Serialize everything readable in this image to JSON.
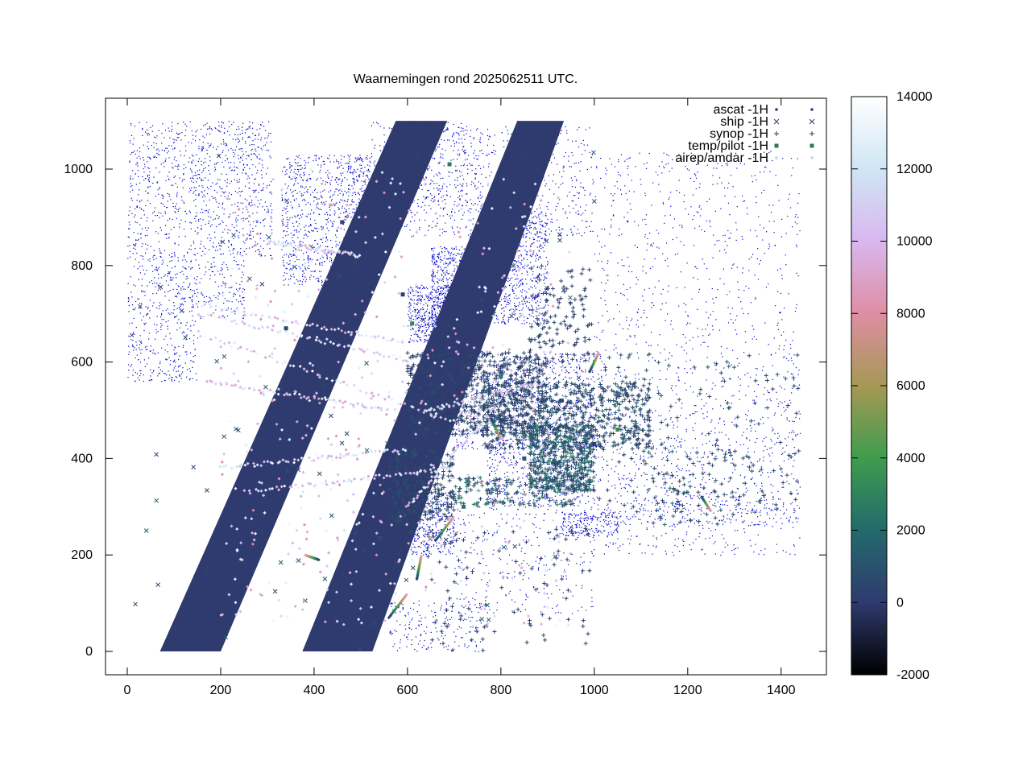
{
  "chart_data": {
    "type": "scatter",
    "title": "Waarnemingen rond 2025062511 UTC.",
    "xlabel": "",
    "ylabel": "",
    "xlim": [
      -50,
      1495
    ],
    "ylim": [
      -50,
      1150
    ],
    "x_ticks": [
      "0",
      "200",
      "400",
      "600",
      "800",
      "1000",
      "1200",
      "1400"
    ],
    "y_ticks": [
      "0",
      "200",
      "400",
      "600",
      "800",
      "1000"
    ],
    "grid": false,
    "legend_placement": "top-right",
    "series": [
      {
        "name": "ascat -1H",
        "marker": "dot",
        "color": "#2f3a6e"
      },
      {
        "name": "ship -1H",
        "marker": "x",
        "color": "#2f3a6e"
      },
      {
        "name": "synop -1H",
        "marker": "plus",
        "color": "#2f3a6e"
      },
      {
        "name": "temp/pilot -1H",
        "marker": "square",
        "color": "#2e7a5a"
      },
      {
        "name": "airep/amdar -1H",
        "marker": "diamond",
        "color": "#cfd6f4"
      }
    ],
    "ascat_swaths": [
      {
        "corners": [
          [
            70,
            0
          ],
          [
            200,
            0
          ],
          [
            685,
            1100
          ],
          [
            575,
            1100
          ]
        ]
      },
      {
        "corners": [
          [
            375,
            0
          ],
          [
            525,
            0
          ],
          [
            935,
            1100
          ],
          [
            835,
            1100
          ]
        ]
      }
    ],
    "colorbar": {
      "ticks": [
        "14000",
        "12000",
        "10000",
        "8000",
        "6000",
        "4000",
        "2000",
        "0",
        "-2000"
      ],
      "range": [
        -2000,
        14000
      ],
      "stops": [
        {
          "value": -2000,
          "color": "#000000"
        },
        {
          "value": 0,
          "color": "#2f3a6e"
        },
        {
          "value": 2000,
          "color": "#236a6c"
        },
        {
          "value": 4000,
          "color": "#3f9c4e"
        },
        {
          "value": 6000,
          "color": "#a69854"
        },
        {
          "value": 8000,
          "color": "#de8ea3"
        },
        {
          "value": 10000,
          "color": "#d9b7ef"
        },
        {
          "value": 12000,
          "color": "#cfe6f5"
        },
        {
          "value": 14000,
          "color": "#ffffff"
        }
      ]
    },
    "coastline_color": "#0000cc"
  }
}
